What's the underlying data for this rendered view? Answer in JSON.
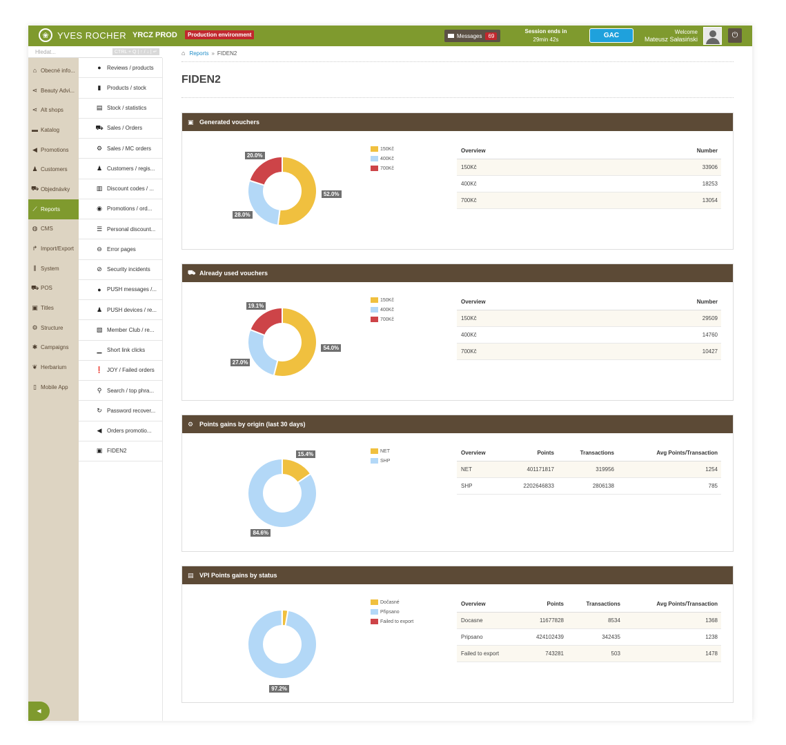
{
  "topbar": {
    "brand": "YVES ROCHER",
    "env_name": "YRCZ PROD",
    "env_badge": "Production environment",
    "messages_label": "Messages",
    "messages_count": "69",
    "session_label": "Session ends in",
    "session_time": "29min 42s",
    "gac_label": "GAC",
    "welcome": "Welcome",
    "user_name": "Mateusz Sałasiński",
    "colors": {
      "brand_green": "#7f9a2e",
      "dark_brown": "#5c4a36",
      "alert_red": "#c1272d",
      "accent_blue": "#1fa1dc"
    }
  },
  "search": {
    "placeholder": "Hledat...",
    "shortcut": "CTRL + Q | ↑ / ↓ | ↵"
  },
  "left_nav": [
    {
      "label": "Obecné info...",
      "icon": "home-icon",
      "glyph": "⌂"
    },
    {
      "label": "Beauty Advi...",
      "icon": "share-icon",
      "glyph": "⋖"
    },
    {
      "label": "Alt shops",
      "icon": "share-icon",
      "glyph": "⋖"
    },
    {
      "label": "Katalog",
      "icon": "folder-icon",
      "glyph": "▬"
    },
    {
      "label": "Promotions",
      "icon": "megaphone-icon",
      "glyph": "◀"
    },
    {
      "label": "Customers",
      "icon": "users-icon",
      "glyph": "♟"
    },
    {
      "label": "Objednávky",
      "icon": "cart-icon",
      "glyph": "⛟"
    },
    {
      "label": "Reports",
      "icon": "chart-icon",
      "glyph": "⟋",
      "active": true
    },
    {
      "label": "CMS",
      "icon": "globe-icon",
      "glyph": "◍"
    },
    {
      "label": "Import/Export",
      "icon": "share-arrow-icon",
      "glyph": "↱"
    },
    {
      "label": "System",
      "icon": "sliders-icon",
      "glyph": "⫼"
    },
    {
      "label": "POS",
      "icon": "cart-icon",
      "glyph": "⛟"
    },
    {
      "label": "Titles",
      "icon": "id-card-icon",
      "glyph": "▣"
    },
    {
      "label": "Structure",
      "icon": "cog-icon",
      "glyph": "⚙"
    },
    {
      "label": "Campaigns",
      "icon": "asterisk-icon",
      "glyph": "✱"
    },
    {
      "label": "Herbarium",
      "icon": "leaf-icon",
      "glyph": "❦"
    },
    {
      "label": "Mobile App",
      "icon": "mobile-icon",
      "glyph": "▯"
    }
  ],
  "sub_menu": [
    {
      "label": "Reviews / products",
      "icon": "comments-icon",
      "glyph": "●"
    },
    {
      "label": "Products / stock",
      "icon": "clipboard-icon",
      "glyph": "▮"
    },
    {
      "label": "Stock / statistics",
      "icon": "presentation-icon",
      "glyph": "▤"
    },
    {
      "label": "Sales / Orders",
      "icon": "cart-icon",
      "glyph": "⛟"
    },
    {
      "label": "Sales / MC orders",
      "icon": "cog-icon",
      "glyph": "⚙"
    },
    {
      "label": "Customers / regis...",
      "icon": "users-icon",
      "glyph": "♟"
    },
    {
      "label": "Discount codes / ...",
      "icon": "barcode-icon",
      "glyph": "▥"
    },
    {
      "label": "Promotions / ord...",
      "icon": "eye-icon",
      "glyph": "◉"
    },
    {
      "label": "Personal discount...",
      "icon": "list-icon",
      "glyph": "☰"
    },
    {
      "label": "Error pages",
      "icon": "minus-circle-icon",
      "glyph": "⊖"
    },
    {
      "label": "Security incidents",
      "icon": "ban-icon",
      "glyph": "⊘"
    },
    {
      "label": "PUSH messages /...",
      "icon": "comments-icon",
      "glyph": "●"
    },
    {
      "label": "PUSH devices / re...",
      "icon": "user-plus-icon",
      "glyph": "♟"
    },
    {
      "label": "Member Club / re...",
      "icon": "file-excel-icon",
      "glyph": "▧"
    },
    {
      "label": "Short link clicks",
      "icon": "bar-chart-icon",
      "glyph": "▁"
    },
    {
      "label": "JOY / Failed orders",
      "icon": "exclamation-circle-icon",
      "glyph": "❗"
    },
    {
      "label": "Search / top phra...",
      "icon": "search-icon",
      "glyph": "⚲"
    },
    {
      "label": "Password recover...",
      "icon": "refresh-icon",
      "glyph": "↻"
    },
    {
      "label": "Orders promotio...",
      "icon": "megaphone-icon",
      "glyph": "◀"
    },
    {
      "label": "FIDEN2",
      "icon": "id-card-icon",
      "glyph": "▣",
      "active": true
    }
  ],
  "breadcrumb": {
    "home_icon": "home-icon",
    "link": "Reports",
    "current": "FIDEN2"
  },
  "page_title": "FIDEN2",
  "panels": [
    {
      "title": "Generated vouchers",
      "icon": "id-card-icon",
      "headers": [
        "Overview",
        "Number"
      ],
      "rows": [
        [
          "150Kč",
          "33906"
        ],
        [
          "400Kč",
          "18253"
        ],
        [
          "700Kč",
          "13054"
        ]
      ],
      "chart_data": {
        "type": "pie",
        "categories": [
          "150Kč",
          "400Kč",
          "700Kč"
        ],
        "values": [
          52.0,
          28.0,
          20.0
        ],
        "labels": [
          "52.0%",
          "28.0%",
          "20.0%"
        ],
        "colors": [
          "#f0c03f",
          "#b3d8f7",
          "#cd4448"
        ],
        "legend": "top-left"
      }
    },
    {
      "title": "Already used vouchers",
      "icon": "cart-icon",
      "headers": [
        "Overview",
        "Number"
      ],
      "rows": [
        [
          "150Kč",
          "29509"
        ],
        [
          "400Kč",
          "14760"
        ],
        [
          "700Kč",
          "10427"
        ]
      ],
      "chart_data": {
        "type": "pie",
        "categories": [
          "150Kč",
          "400Kč",
          "700Kč"
        ],
        "values": [
          54.0,
          27.0,
          19.1
        ],
        "labels": [
          "54.0%",
          "27.0%",
          "19.1%"
        ],
        "colors": [
          "#f0c03f",
          "#b3d8f7",
          "#cd4448"
        ],
        "legend": "top-left"
      }
    },
    {
      "title": "Points gains by origin (last 30 days)",
      "icon": "cog-icon",
      "headers": [
        "Overview",
        "Points",
        "Transactions",
        "Avg Points/Transaction"
      ],
      "rows": [
        [
          "NET",
          "401171817",
          "319956",
          "1254"
        ],
        [
          "SHP",
          "2202646833",
          "2806138",
          "785"
        ]
      ],
      "chart_data": {
        "type": "pie",
        "categories": [
          "NET",
          "SHP"
        ],
        "values": [
          15.4,
          84.6
        ],
        "labels": [
          "15.4%",
          "84.6%"
        ],
        "colors": [
          "#f0c03f",
          "#b3d8f7"
        ],
        "legend": "top-left"
      }
    },
    {
      "title": "VPI Points gains by status",
      "icon": "presentation-icon",
      "headers": [
        "Overview",
        "Points",
        "Transactions",
        "Avg Points/Transaction"
      ],
      "rows": [
        [
          "Docasne",
          "11677828",
          "8534",
          "1368"
        ],
        [
          "Pripsano",
          "424102439",
          "342435",
          "1238"
        ],
        [
          "Failed to export",
          "743281",
          "503",
          "1478"
        ]
      ],
      "chart_data": {
        "type": "pie",
        "categories": [
          "Dočasné",
          "Připsano",
          "Failed to export"
        ],
        "values": [
          2.7,
          97.2,
          0.1
        ],
        "labels": [
          "",
          "97.2%",
          ""
        ],
        "colors": [
          "#f0c03f",
          "#b3d8f7",
          "#cd4448"
        ],
        "legend": "top-left"
      }
    }
  ]
}
